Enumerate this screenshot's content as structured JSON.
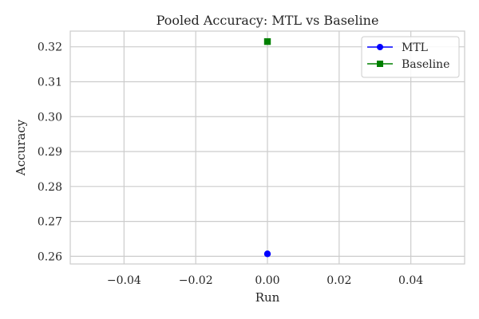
{
  "chart_data": {
    "type": "line",
    "title": "Pooled Accuracy: MTL vs Baseline",
    "xlabel": "Run",
    "ylabel": "Accuracy",
    "xlim": [
      -0.055,
      0.055
    ],
    "ylim": [
      0.2578,
      0.3245
    ],
    "x_ticks": [
      -0.04,
      -0.02,
      0.0,
      0.02,
      0.04
    ],
    "x_tick_labels": [
      "−0.04",
      "−0.02",
      "0.00",
      "0.02",
      "0.04"
    ],
    "y_ticks": [
      0.26,
      0.27,
      0.28,
      0.29,
      0.3,
      0.31,
      0.32
    ],
    "y_tick_labels": [
      "0.26",
      "0.27",
      "0.28",
      "0.29",
      "0.30",
      "0.31",
      "0.32"
    ],
    "grid": true,
    "legend": "top-right",
    "series": [
      {
        "name": "MTL",
        "marker": "circle",
        "color": "#0000ff",
        "points": [
          {
            "x": 0,
            "y": 0.2607
          }
        ]
      },
      {
        "name": "Baseline",
        "marker": "square",
        "color": "#008000",
        "points": [
          {
            "x": 0,
            "y": 0.3215
          }
        ]
      }
    ]
  }
}
